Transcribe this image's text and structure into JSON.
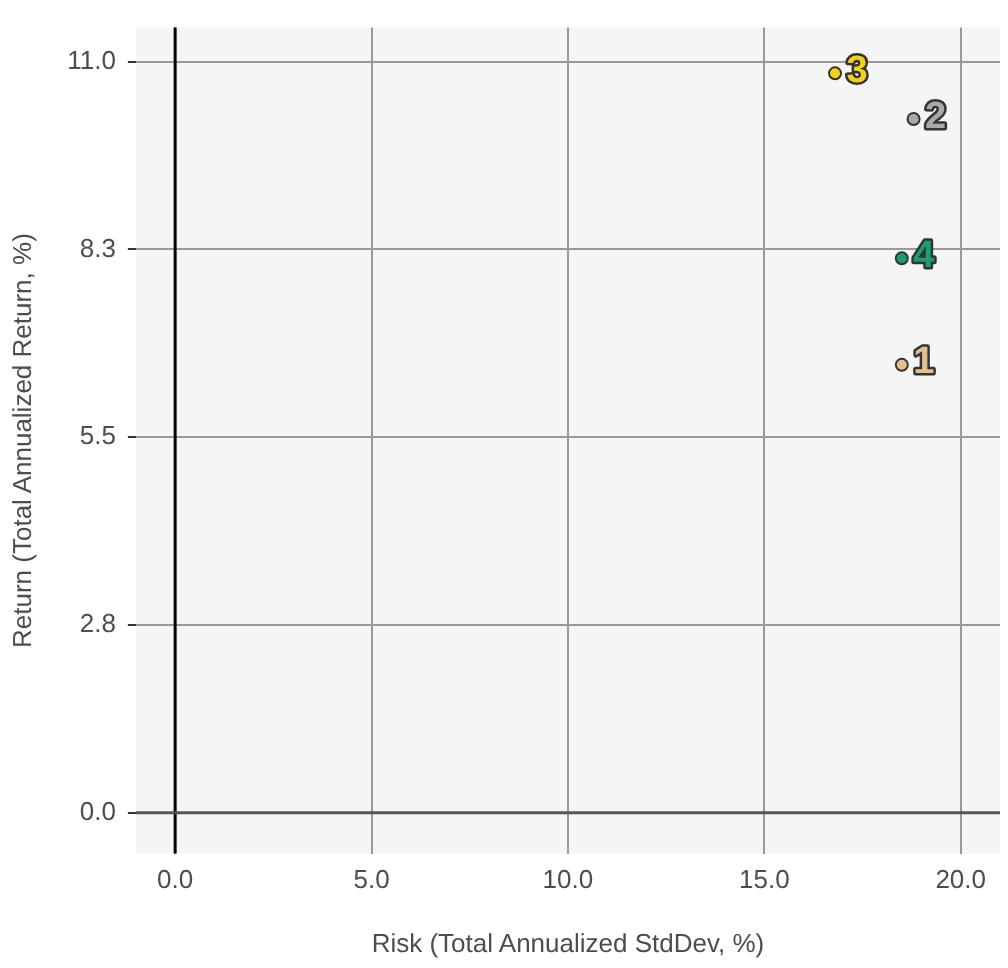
{
  "chart_data": {
    "type": "scatter",
    "xlabel": "Risk (Total Annualized StdDev, %)",
    "ylabel": "Return (Total Annualized Return, %)",
    "series": [
      {
        "name": "1",
        "color": "#e3c18d",
        "x": [
          18.5
        ],
        "values": [
          6.56
        ]
      },
      {
        "name": "2",
        "color": "#a9a9a9",
        "x": [
          18.8
        ],
        "values": [
          10.16
        ]
      },
      {
        "name": "3",
        "color": "#f7d117",
        "x": [
          16.8
        ],
        "values": [
          10.83
        ]
      },
      {
        "name": "4",
        "color": "#1b9e77",
        "x": [
          18.5
        ],
        "values": [
          8.12
        ]
      }
    ],
    "xlim": [
      -1.0,
      21.0
    ],
    "xticks": [
      {
        "value": 0,
        "label": "0.0"
      },
      {
        "value": 5,
        "label": "5.0"
      },
      {
        "value": 10,
        "label": "10.0"
      },
      {
        "value": 15,
        "label": "15.0"
      },
      {
        "value": 20,
        "label": "20.0"
      }
    ],
    "ylim": [
      -0.6,
      11.5
    ],
    "yticks": [
      {
        "value": 0,
        "label": "0.0"
      },
      {
        "value": 2.75,
        "label": "2.8"
      },
      {
        "value": 5.5,
        "label": "5.5"
      },
      {
        "value": 8.25,
        "label": "8.3"
      },
      {
        "value": 11,
        "label": "11.0"
      }
    ],
    "grid": true,
    "legend": false,
    "ref_lines": [
      {
        "axis": "x",
        "value": 0,
        "color": "#000000"
      },
      {
        "axis": "y",
        "value": 0,
        "color": "#555555"
      }
    ]
  }
}
